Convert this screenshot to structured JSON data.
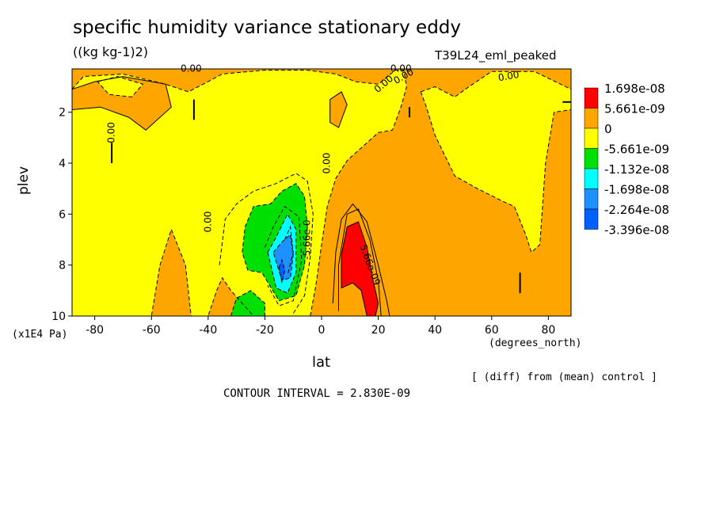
{
  "chart_data": {
    "type": "heatmap",
    "title": "specific humidity variance stationary eddy",
    "units": "((kg kg-1)2)",
    "run_id": "T39L24_eml_peaked",
    "xlabel": "lat",
    "xunits": "(degrees_north)",
    "ylabel": "plev",
    "yunits": "(x1E4 Pa)",
    "xlim": [
      -88,
      88
    ],
    "ylim": [
      10,
      0.3
    ],
    "xticks": [
      -80,
      -60,
      -40,
      -20,
      0,
      20,
      40,
      60,
      80
    ],
    "yticks": [
      2,
      4,
      6,
      8,
      10
    ],
    "note": "[ (diff) from (mean) control ]",
    "contour_interval": "CONTOUR INTERVAL = 2.830E-09",
    "legend": {
      "placement": "right",
      "colors": [
        "#ff0000",
        "#ffa500",
        "#ffff00",
        "#00e000",
        "#00ffff",
        "#1e90ff",
        "#0060ff"
      ],
      "labels": [
        "1.698e-08",
        "5.661e-09",
        "0",
        "-5.661e-09",
        "-1.132e-08",
        "-1.698e-08",
        "-2.264e-08",
        "-3.396e-08"
      ]
    },
    "contour_labels": [
      "0.00",
      "0.00",
      "0.00",
      "0.00",
      "0.00",
      "0.00",
      "0.00",
      "0.00",
      "-5.66e-0",
      "5.66e-09"
    ],
    "regions": [
      {
        "name": "background",
        "level": "0 to 5.661e-09",
        "color": "#ffa500",
        "poly": [
          [
            -88,
            0.3
          ],
          [
            88,
            0.3
          ],
          [
            88,
            10
          ],
          [
            -88,
            10
          ]
        ]
      },
      {
        "name": "main-negative",
        "level": "-5.661e-09 to 0",
        "color": "#ffff00",
        "poly": [
          [
            -88,
            1.1
          ],
          [
            -84,
            0.6
          ],
          [
            -70,
            0.5
          ],
          [
            -55,
            0.9
          ],
          [
            -47,
            1.2
          ],
          [
            -40,
            0.8
          ],
          [
            -35,
            0.5
          ],
          [
            -20,
            0.35
          ],
          [
            -5,
            0.35
          ],
          [
            5,
            0.5
          ],
          [
            12,
            0.8
          ],
          [
            20,
            0.9
          ],
          [
            26,
            0.35
          ],
          [
            29,
            0.35
          ],
          [
            30,
            1.0
          ],
          [
            28,
            1.8
          ],
          [
            25,
            2.7
          ],
          [
            20,
            2.8
          ],
          [
            15,
            3.3
          ],
          [
            9,
            3.9
          ],
          [
            5,
            4.6
          ],
          [
            2,
            5.7
          ],
          [
            0,
            7.2
          ],
          [
            -2,
            8.8
          ],
          [
            -4,
            10
          ],
          [
            -24,
            10
          ],
          [
            -32,
            9.0
          ],
          [
            -35,
            8.5
          ],
          [
            -37,
            9.0
          ],
          [
            -40,
            10
          ],
          [
            -46,
            10
          ],
          [
            -48,
            8.0
          ],
          [
            -53,
            6.6
          ],
          [
            -57,
            8.0
          ],
          [
            -60,
            10
          ],
          [
            -88,
            10
          ]
        ]
      },
      {
        "name": "top-blob-orange",
        "level": "0 to 5.661e-09",
        "color": "#ffa500",
        "poly": [
          [
            -88,
            1.1
          ],
          [
            -80,
            0.8
          ],
          [
            -70,
            0.6
          ],
          [
            -55,
            0.9
          ],
          [
            -53,
            1.8
          ],
          [
            -62,
            2.7
          ],
          [
            -68,
            2.2
          ],
          [
            -78,
            1.8
          ],
          [
            -88,
            1.9
          ]
        ]
      },
      {
        "name": "top-blob-yellow",
        "level": "-5.661e-09 to 0",
        "color": "#ffff00",
        "poly": [
          [
            -79,
            0.8
          ],
          [
            -72,
            0.6
          ],
          [
            -63,
            0.9
          ],
          [
            -67,
            1.4
          ],
          [
            -75,
            1.3
          ]
        ]
      },
      {
        "name": "right-lobe",
        "level": "-5.661e-09 to 0",
        "color": "#ffff00",
        "poly": [
          [
            35,
            1.2
          ],
          [
            40,
            1.0
          ],
          [
            47,
            1.4
          ],
          [
            52,
            1.0
          ],
          [
            60,
            0.4
          ],
          [
            75,
            0.4
          ],
          [
            88,
            1.1
          ],
          [
            88,
            1.9
          ],
          [
            82,
            2.0
          ],
          [
            79,
            4.0
          ],
          [
            77,
            7.2
          ],
          [
            74,
            7.5
          ],
          [
            72,
            6.8
          ],
          [
            68,
            5.7
          ],
          [
            64,
            5.5
          ],
          [
            55,
            5.0
          ],
          [
            47,
            4.5
          ],
          [
            40,
            2.9
          ],
          [
            37,
            1.8
          ]
        ]
      },
      {
        "name": "orange-spot-upper",
        "level": "0 to 5.661e-09",
        "color": "#ffa500",
        "poly": [
          [
            3,
            1.5
          ],
          [
            7,
            1.2
          ],
          [
            9,
            1.7
          ],
          [
            6,
            2.6
          ],
          [
            3,
            2.4
          ]
        ]
      },
      {
        "name": "red-core",
        "level": "5.661e-09 to 1.698e-08",
        "color": "#ff0000",
        "poly": [
          [
            7,
            7.6
          ],
          [
            9,
            6.5
          ],
          [
            13,
            6.3
          ],
          [
            16,
            7.3
          ],
          [
            18,
            8.5
          ],
          [
            20,
            9.5
          ],
          [
            19,
            10
          ],
          [
            16,
            10
          ],
          [
            14,
            9.0
          ],
          [
            11,
            8.7
          ],
          [
            7,
            8.9
          ]
        ]
      },
      {
        "name": "green-main",
        "level": "-1.132e-08 to -5.661e-09",
        "color": "#00e000",
        "poly": [
          [
            -28,
            7.5
          ],
          [
            -27,
            6.5
          ],
          [
            -24,
            5.7
          ],
          [
            -18,
            5.6
          ],
          [
            -14,
            5.1
          ],
          [
            -9,
            4.8
          ],
          [
            -6,
            5.3
          ],
          [
            -5,
            6.5
          ],
          [
            -6,
            8.0
          ],
          [
            -9,
            9.2
          ],
          [
            -15,
            9.4
          ],
          [
            -21,
            8.3
          ],
          [
            -26,
            8.2
          ]
        ]
      },
      {
        "name": "green-bottom",
        "level": "-1.132e-08 to -5.661e-09",
        "color": "#00e000",
        "poly": [
          [
            -32,
            10
          ],
          [
            -30,
            9.3
          ],
          [
            -25,
            9.0
          ],
          [
            -20,
            9.5
          ],
          [
            -20,
            10
          ]
        ]
      },
      {
        "name": "cyan",
        "level": "-1.698e-08 to -1.132e-08",
        "color": "#00ffff",
        "poly": [
          [
            -19,
            7.5
          ],
          [
            -16,
            6.9
          ],
          [
            -12,
            6.0
          ],
          [
            -9,
            6.6
          ],
          [
            -9,
            8.3
          ],
          [
            -12,
            9.1
          ],
          [
            -16,
            8.9
          ]
        ]
      },
      {
        "name": "blue",
        "level": "-2.264e-08 to -1.698e-08",
        "color": "#1e90ff",
        "poly": [
          [
            -17,
            7.5
          ],
          [
            -14,
            7.1
          ],
          [
            -11,
            6.8
          ],
          [
            -10,
            7.6
          ],
          [
            -11,
            8.5
          ],
          [
            -14,
            8.6
          ]
        ]
      },
      {
        "name": "deep-blue",
        "level": "-3.396e-08 to -2.264e-08",
        "color": "#0060ff",
        "poly": [
          [
            -15,
            8.1
          ],
          [
            -14,
            7.8
          ],
          [
            -13,
            8.2
          ],
          [
            -14,
            8.7
          ]
        ]
      }
    ],
    "contours": [
      [
        [
          -36,
          8.0
        ],
        [
          -34,
          6.2
        ],
        [
          -30,
          5.6
        ],
        [
          -24,
          5.1
        ],
        [
          -16,
          4.8
        ],
        [
          -9,
          4.4
        ],
        [
          -5,
          4.7
        ],
        [
          -3,
          6.0
        ],
        [
          -4,
          7.7
        ],
        [
          -6,
          9.2
        ],
        [
          -10,
          9.9
        ]
      ],
      [
        [
          -20,
          7.3
        ],
        [
          -17,
          6.5
        ],
        [
          -13,
          5.7
        ],
        [
          -8,
          6.1
        ],
        [
          -7,
          7.8
        ],
        [
          -10,
          9.4
        ],
        [
          -15,
          9.6
        ],
        [
          -19,
          8.8
        ]
      ],
      [
        [
          -13,
          7.0
        ],
        [
          -11,
          6.5
        ],
        [
          -10,
          7.5
        ],
        [
          -12,
          8.4
        ]
      ],
      [
        [
          4,
          9.5
        ],
        [
          5,
          7.5
        ],
        [
          7,
          6.2
        ],
        [
          11,
          5.6
        ],
        [
          16,
          6.3
        ],
        [
          20,
          8.0
        ],
        [
          23,
          9.4
        ],
        [
          24,
          10
        ]
      ],
      [
        [
          6,
          9.8
        ],
        [
          6,
          8.0
        ],
        [
          9,
          6.0
        ],
        [
          13,
          5.8
        ],
        [
          17,
          7.0
        ],
        [
          20,
          8.6
        ],
        [
          21,
          10
        ]
      ],
      [
        [
          -45,
          1.5
        ],
        [
          -45,
          2.3
        ]
      ],
      [
        [
          -74,
          3.2
        ],
        [
          -74,
          4.0
        ]
      ],
      [
        [
          70,
          8.3
        ],
        [
          70,
          9.1
        ]
      ],
      [
        [
          31,
          1.8
        ],
        [
          31,
          2.2
        ]
      ],
      [
        [
          85,
          1.6
        ],
        [
          88,
          1.6
        ]
      ]
    ],
    "contour_label_positions": [
      [
        -46,
        0.3,
        0,
        "0.00"
      ],
      [
        28,
        0.3,
        0,
        "0.00"
      ],
      [
        22,
        0.9,
        -40,
        "0.00"
      ],
      [
        29,
        0.6,
        -30,
        "0.00"
      ],
      [
        66,
        0.6,
        -10,
        "0.00"
      ],
      [
        -74,
        2.8,
        -90,
        "0.00"
      ],
      [
        -40,
        6.3,
        -90,
        "0.00"
      ],
      [
        2,
        4.0,
        -90,
        "0.00"
      ],
      [
        -5,
        7.0,
        -90,
        "-5.66e-0"
      ],
      [
        17,
        8.0,
        70,
        "5.66e-09"
      ]
    ]
  }
}
